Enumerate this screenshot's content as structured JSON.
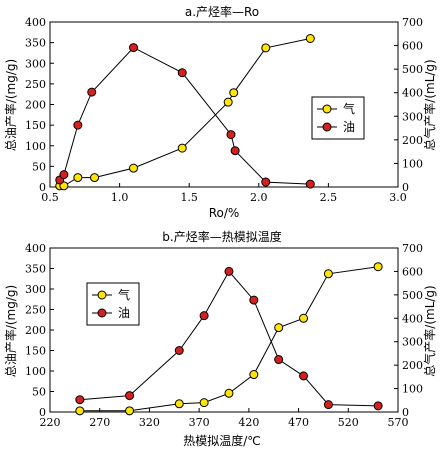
{
  "colors": {
    "gas": "#ffe600",
    "oil": "#d62020",
    "axis": "#000000"
  },
  "chart_data": [
    {
      "type": "line",
      "title": "a.产烃率—Ro",
      "xlabel": "Ro/%",
      "ylabel_left": "总油产率/(mg/g)",
      "ylabel_right": "总气产率/(mL/g)",
      "xlim": [
        0.5,
        3.0
      ],
      "ylim_left": [
        0,
        400
      ],
      "ylim_right": [
        0,
        700
      ],
      "xticks": [
        "0.5",
        "1.0",
        "1.5",
        "2.0",
        "2.5",
        "3.0"
      ],
      "yticks_left": [
        "0",
        "50",
        "100",
        "150",
        "200",
        "250",
        "300",
        "350",
        "400"
      ],
      "yticks_right": [
        "0",
        "100",
        "200",
        "300",
        "400",
        "500",
        "600",
        "700"
      ],
      "legend_position": "right",
      "series": [
        {
          "name": "气",
          "axis": "right",
          "x": [
            0.57,
            0.6,
            0.7,
            0.82,
            1.1,
            1.45,
            1.78,
            1.82,
            2.05,
            2.37
          ],
          "y": [
            5,
            5,
            40,
            40,
            80,
            165,
            360,
            400,
            590,
            630
          ]
        },
        {
          "name": "油",
          "axis": "left",
          "x": [
            0.57,
            0.6,
            0.7,
            0.8,
            1.1,
            1.45,
            1.8,
            1.83,
            2.05,
            2.37
          ],
          "y": [
            17,
            30,
            150,
            230,
            338,
            277,
            127,
            88,
            12,
            7
          ]
        }
      ]
    },
    {
      "type": "line",
      "title": "b.产烃率—热模拟温度",
      "xlabel": "热模拟温度/℃",
      "ylabel_left": "总油产率/(mg/g)",
      "ylabel_right": "总气产率/(mL/g)",
      "xlim": [
        220,
        570
      ],
      "ylim_left": [
        0,
        400
      ],
      "ylim_right": [
        0,
        700
      ],
      "xticks": [
        "220",
        "270",
        "320",
        "370",
        "420",
        "470",
        "520",
        "570"
      ],
      "yticks_left": [
        "0",
        "50",
        "100",
        "150",
        "200",
        "250",
        "300",
        "350",
        "400"
      ],
      "yticks_right": [
        "0",
        "100",
        "200",
        "300",
        "400",
        "500",
        "600",
        "700"
      ],
      "legend_position": "top-left",
      "series": [
        {
          "name": "气",
          "axis": "right",
          "x": [
            250,
            300,
            350,
            375,
            400,
            425,
            450,
            475,
            500,
            550
          ],
          "y": [
            5,
            5,
            35,
            40,
            80,
            160,
            360,
            400,
            590,
            620
          ]
        },
        {
          "name": "油",
          "axis": "left",
          "x": [
            250,
            300,
            350,
            375,
            400,
            425,
            450,
            475,
            500,
            550
          ],
          "y": [
            30,
            40,
            150,
            235,
            343,
            273,
            128,
            88,
            18,
            15
          ]
        }
      ]
    }
  ]
}
